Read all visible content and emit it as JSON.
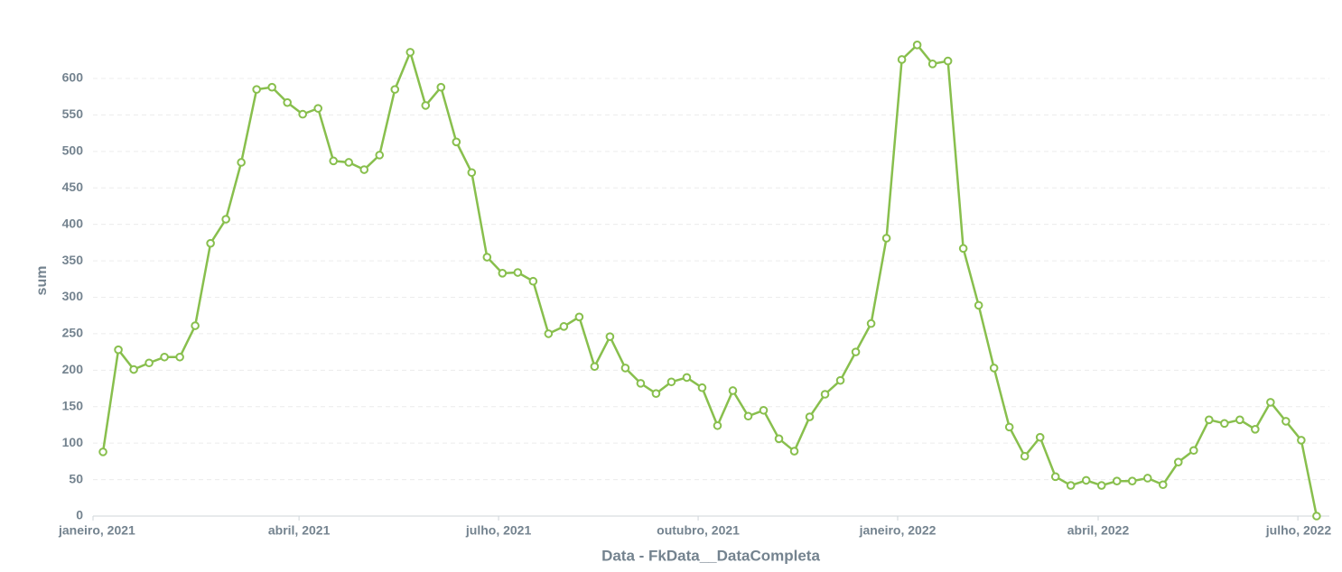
{
  "chart_data": {
    "type": "line",
    "x_label": "Data - FkData__DataCompleta",
    "y_label": "sum",
    "x": [
      0,
      1,
      2,
      3,
      4,
      5,
      6,
      7,
      8,
      9,
      10,
      11,
      12,
      13,
      14,
      15,
      16,
      17,
      18,
      19,
      20,
      21,
      22,
      23,
      24,
      25,
      26,
      27,
      28,
      29,
      30,
      31,
      32,
      33,
      34,
      35,
      36,
      37,
      38,
      39,
      40,
      41,
      42,
      43,
      44,
      45,
      46,
      47,
      48,
      49,
      50,
      51,
      52,
      53,
      54,
      55,
      56,
      57,
      58,
      59,
      60,
      61,
      62,
      63,
      64,
      65,
      66,
      67,
      68,
      69,
      70,
      71,
      72,
      73,
      74,
      75,
      76,
      77,
      78,
      79
    ],
    "series": [
      {
        "name": "sum",
        "color": "#88bf4d",
        "values": [
          88,
          228,
          201,
          210,
          218,
          218,
          261,
          374,
          407,
          485,
          585,
          588,
          567,
          551,
          559,
          487,
          485,
          475,
          495,
          585,
          636,
          563,
          588,
          513,
          471,
          355,
          333,
          334,
          322,
          250,
          260,
          273,
          205,
          246,
          203,
          182,
          168,
          184,
          190,
          176,
          124,
          172,
          137,
          145,
          106,
          89,
          136,
          167,
          186,
          225,
          264,
          381,
          626,
          646,
          620,
          624,
          367,
          289,
          203,
          122,
          82,
          108,
          54,
          42,
          49,
          42,
          48,
          48,
          52,
          43,
          74,
          90,
          132,
          127,
          132,
          119,
          156,
          130,
          104,
          0
        ]
      }
    ],
    "xlim": [
      -0.65,
      79.83
    ],
    "xticks": [
      {
        "value": -0.65,
        "label": "janeiro, 2021"
      },
      {
        "value": 12.76,
        "label": "abril, 2021"
      },
      {
        "value": 25.75,
        "label": "julho, 2021"
      },
      {
        "value": 38.74,
        "label": "outubro, 2021"
      },
      {
        "value": 51.73,
        "label": "janeiro, 2022"
      },
      {
        "value": 64.78,
        "label": "abril, 2022"
      },
      {
        "value": 77.78,
        "label": "julho, 2022"
      }
    ],
    "ylim": [
      0,
      660
    ],
    "yticks": [
      0,
      50,
      100,
      150,
      200,
      250,
      300,
      350,
      400,
      450,
      500,
      550,
      600
    ],
    "grid": true
  }
}
